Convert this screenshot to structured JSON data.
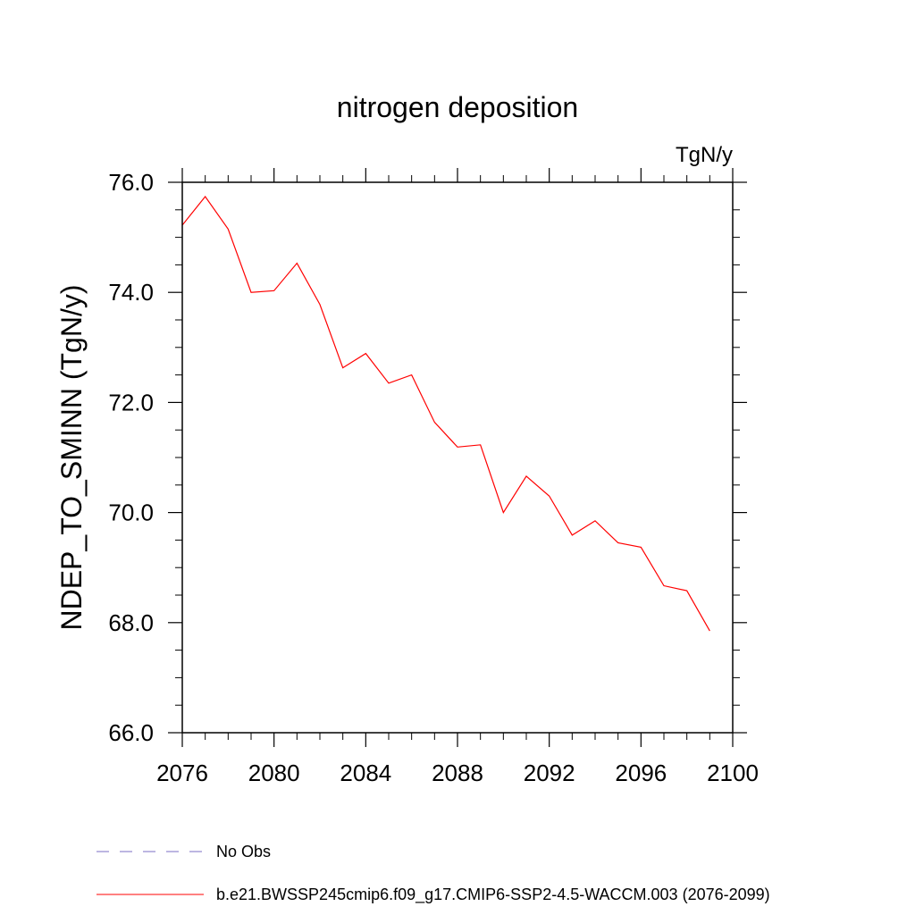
{
  "chart_data": {
    "type": "line",
    "title": "nitrogen deposition",
    "units_label": "TgN/y",
    "ylabel": "NDEP_TO_SMINN  (TgN/y)",
    "xlabel": "",
    "xlim": [
      2076,
      2100
    ],
    "ylim": [
      66.0,
      76.0
    ],
    "x_ticks": [
      "2076",
      "2080",
      "2084",
      "2088",
      "2092",
      "2096",
      "2100"
    ],
    "y_ticks": [
      "66.0",
      "68.0",
      "70.0",
      "72.0",
      "74.0",
      "76.0"
    ],
    "x_tick_values": [
      2076,
      2080,
      2084,
      2088,
      2092,
      2096,
      2100
    ],
    "y_tick_values": [
      66,
      68,
      70,
      72,
      74,
      76
    ],
    "grid": false,
    "legend_position": "bottom",
    "legend": [
      {
        "label": "No Obs",
        "color": "#7b6cc4",
        "style": "dashed"
      },
      {
        "label": "b.e21.BWSSP245cmip6.f09_g17.CMIP6-SSP2-4.5-WACCM.003 (2076-2099)",
        "color": "#ff0000",
        "style": "solid"
      }
    ],
    "series": [
      {
        "name": "b.e21.BWSSP245cmip6.f09_g17.CMIP6-SSP2-4.5-WACCM.003 (2076-2099)",
        "color": "#ff0000",
        "x": [
          2076,
          2077,
          2078,
          2079,
          2080,
          2081,
          2082,
          2083,
          2084,
          2085,
          2086,
          2087,
          2088,
          2089,
          2090,
          2091,
          2092,
          2093,
          2094,
          2095,
          2096,
          2097,
          2098,
          2099
        ],
        "values": [
          75.22,
          75.74,
          75.15,
          74.0,
          74.03,
          74.53,
          73.78,
          72.63,
          72.89,
          72.35,
          72.5,
          71.64,
          71.19,
          71.23,
          70.0,
          70.66,
          70.3,
          69.59,
          69.85,
          69.45,
          69.37,
          68.67,
          68.58,
          67.85
        ]
      }
    ]
  }
}
